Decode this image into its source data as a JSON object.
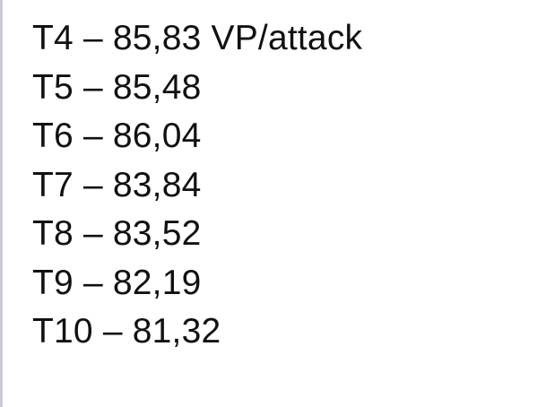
{
  "lines": [
    "T4 – 85,83 VP/attack",
    "T5 – 85,48",
    "T6 – 86,04",
    "T7 – 83,84",
    "T8 – 83,52",
    "T9 – 82,19",
    "T10 – 81,32"
  ]
}
